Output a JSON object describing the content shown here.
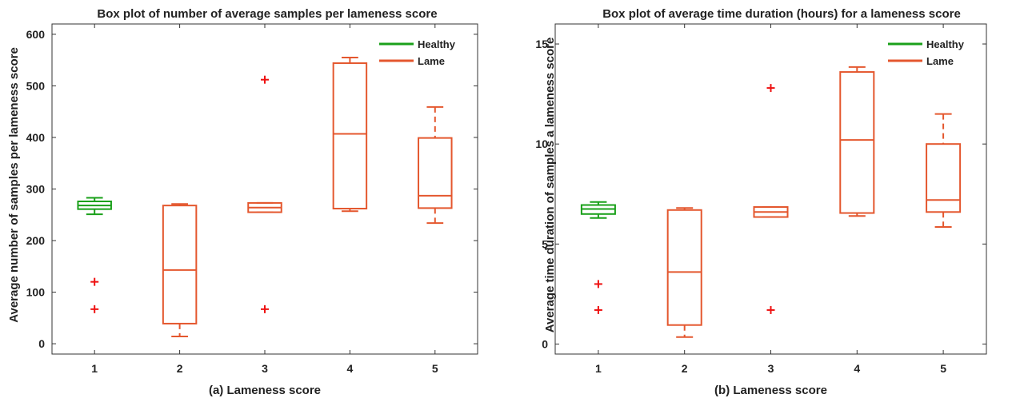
{
  "chart_data": [
    {
      "type": "box",
      "title": "Box plot of number of average samples per lameness score",
      "xlabel": "(a) Lameness score",
      "ylabel": "Average number of samples per lameness score",
      "categories": [
        "1",
        "2",
        "3",
        "4",
        "5"
      ],
      "yticks": [
        0,
        100,
        200,
        300,
        400,
        500,
        600
      ],
      "ylim": [
        -20,
        620
      ],
      "grid": false,
      "legend_position": "top-right",
      "series": [
        {
          "name": "Healthy",
          "color": "#1aa01a",
          "categories": [
            "1"
          ]
        },
        {
          "name": "Lame",
          "color": "#e4572e",
          "categories": [
            "2",
            "3",
            "4",
            "5"
          ]
        }
      ],
      "boxes": [
        {
          "x": "1",
          "series": "Healthy",
          "whisker_low": 251,
          "q1": 261,
          "median": 268,
          "q3": 276,
          "whisker_high": 283,
          "outliers": [
            120,
            67
          ]
        },
        {
          "x": "2",
          "series": "Lame",
          "whisker_low": 14,
          "q1": 39,
          "median": 143,
          "q3": 268,
          "whisker_high": 271,
          "outliers": []
        },
        {
          "x": "3",
          "series": "Lame",
          "whisker_low": 255,
          "q1": 255,
          "median": 264,
          "q3": 273,
          "whisker_high": 273,
          "outliers": [
            512,
            67
          ]
        },
        {
          "x": "4",
          "series": "Lame",
          "whisker_low": 257,
          "q1": 262,
          "median": 407,
          "q3": 544,
          "whisker_high": 555,
          "outliers": []
        },
        {
          "x": "5",
          "series": "Lame",
          "whisker_low": 234,
          "q1": 263,
          "median": 287,
          "q3": 399,
          "whisker_high": 459,
          "outliers": []
        }
      ],
      "outlier_color": "#ee1111"
    },
    {
      "type": "box",
      "title": "Box plot of average time duration (hours) for a lameness score",
      "xlabel": "(b) Lameness score",
      "ylabel": "Average time duration of samples a lameness score",
      "categories": [
        "1",
        "2",
        "3",
        "4",
        "5"
      ],
      "yticks": [
        0,
        5,
        10,
        15
      ],
      "ylim": [
        -0.5,
        16
      ],
      "grid": false,
      "legend_position": "top-right",
      "series": [
        {
          "name": "Healthy",
          "color": "#1aa01a",
          "categories": [
            "1"
          ]
        },
        {
          "name": "Lame",
          "color": "#e4572e",
          "categories": [
            "2",
            "3",
            "4",
            "5"
          ]
        }
      ],
      "boxes": [
        {
          "x": "1",
          "series": "Healthy",
          "whisker_low": 6.3,
          "q1": 6.5,
          "median": 6.75,
          "q3": 6.95,
          "whisker_high": 7.1,
          "outliers": [
            3.0,
            1.7
          ]
        },
        {
          "x": "2",
          "series": "Lame",
          "whisker_low": 0.35,
          "q1": 0.95,
          "median": 3.6,
          "q3": 6.7,
          "whisker_high": 6.8,
          "outliers": []
        },
        {
          "x": "3",
          "series": "Lame",
          "whisker_low": 6.35,
          "q1": 6.35,
          "median": 6.6,
          "q3": 6.85,
          "whisker_high": 6.85,
          "outliers": [
            12.8,
            1.7
          ]
        },
        {
          "x": "4",
          "series": "Lame",
          "whisker_low": 6.4,
          "q1": 6.55,
          "median": 10.2,
          "q3": 13.6,
          "whisker_high": 13.85,
          "outliers": []
        },
        {
          "x": "5",
          "series": "Lame",
          "whisker_low": 5.85,
          "q1": 6.6,
          "median": 7.2,
          "q3": 10.0,
          "whisker_high": 11.5,
          "outliers": []
        }
      ],
      "outlier_color": "#ee1111"
    }
  ]
}
